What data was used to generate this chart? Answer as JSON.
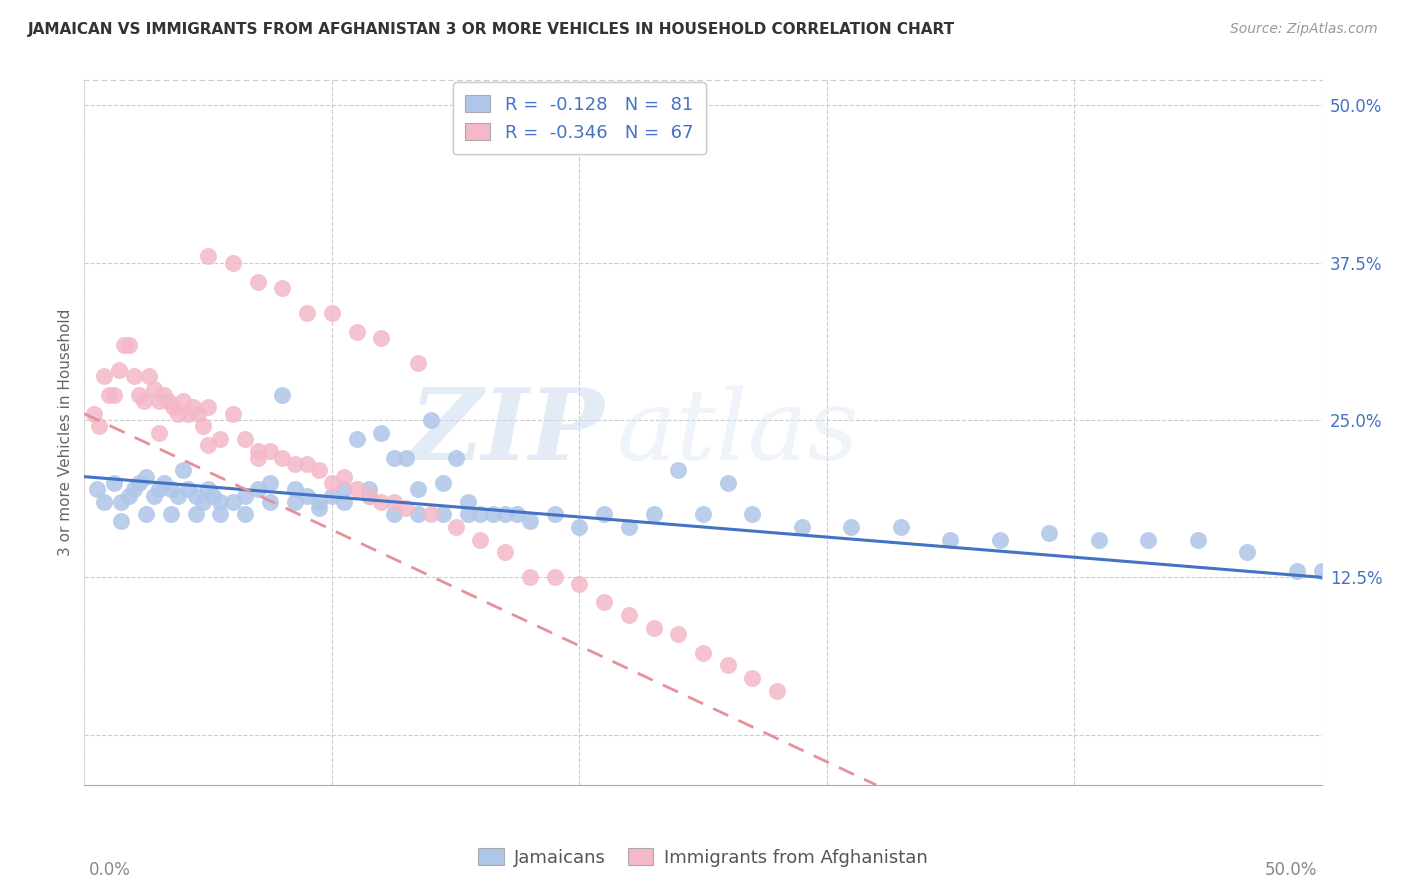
{
  "title": "JAMAICAN VS IMMIGRANTS FROM AFGHANISTAN 3 OR MORE VEHICLES IN HOUSEHOLD CORRELATION CHART",
  "source": "Source: ZipAtlas.com",
  "ylabel": "3 or more Vehicles in Household",
  "legend_label_1": "R =  -0.128   N =  81",
  "legend_label_2": "R =  -0.346   N =  67",
  "legend_bottom_1": "Jamaicans",
  "legend_bottom_2": "Immigrants from Afghanistan",
  "color_blue": "#aec6e8",
  "color_pink": "#f4b8c8",
  "color_blue_line": "#4472c4",
  "color_pink_line": "#e8909a",
  "color_text_blue": "#4472c4",
  "color_grid": "#cccccc",
  "watermark_zip": "ZIP",
  "watermark_atlas": "atlas",
  "xlim": [
    0.0,
    0.5
  ],
  "ylim": [
    -0.04,
    0.52
  ],
  "x_tick_positions": [
    0.0,
    0.1,
    0.2,
    0.3,
    0.4,
    0.5
  ],
  "y_tick_positions": [
    0.0,
    0.125,
    0.25,
    0.375,
    0.5
  ],
  "y_tick_labels": [
    "",
    "12.5%",
    "25.0%",
    "37.5%",
    "50.0%"
  ],
  "blue_line_x": [
    0.0,
    0.5
  ],
  "blue_line_y": [
    0.205,
    0.125
  ],
  "pink_line_x": [
    0.0,
    0.32
  ],
  "pink_line_y": [
    0.255,
    -0.04
  ],
  "jam_x": [
    0.005,
    0.008,
    0.012,
    0.015,
    0.018,
    0.02,
    0.022,
    0.025,
    0.028,
    0.03,
    0.032,
    0.035,
    0.038,
    0.04,
    0.042,
    0.045,
    0.048,
    0.05,
    0.052,
    0.055,
    0.06,
    0.065,
    0.07,
    0.075,
    0.08,
    0.085,
    0.09,
    0.095,
    0.1,
    0.105,
    0.11,
    0.115,
    0.12,
    0.125,
    0.13,
    0.135,
    0.14,
    0.145,
    0.15,
    0.155,
    0.16,
    0.165,
    0.17,
    0.175,
    0.18,
    0.19,
    0.2,
    0.21,
    0.22,
    0.23,
    0.25,
    0.27,
    0.29,
    0.31,
    0.33,
    0.35,
    0.37,
    0.39,
    0.41,
    0.43,
    0.45,
    0.47,
    0.49,
    0.015,
    0.025,
    0.035,
    0.045,
    0.055,
    0.065,
    0.075,
    0.085,
    0.095,
    0.105,
    0.115,
    0.125,
    0.135,
    0.145,
    0.155,
    0.24,
    0.26,
    0.5
  ],
  "jam_y": [
    0.195,
    0.185,
    0.2,
    0.185,
    0.19,
    0.195,
    0.2,
    0.205,
    0.19,
    0.195,
    0.2,
    0.195,
    0.19,
    0.21,
    0.195,
    0.19,
    0.185,
    0.195,
    0.19,
    0.185,
    0.185,
    0.19,
    0.195,
    0.2,
    0.27,
    0.195,
    0.19,
    0.185,
    0.19,
    0.195,
    0.235,
    0.195,
    0.24,
    0.22,
    0.22,
    0.195,
    0.25,
    0.2,
    0.22,
    0.185,
    0.175,
    0.175,
    0.175,
    0.175,
    0.17,
    0.175,
    0.165,
    0.175,
    0.165,
    0.175,
    0.175,
    0.175,
    0.165,
    0.165,
    0.165,
    0.155,
    0.155,
    0.16,
    0.155,
    0.155,
    0.155,
    0.145,
    0.13,
    0.17,
    0.175,
    0.175,
    0.175,
    0.175,
    0.175,
    0.185,
    0.185,
    0.18,
    0.185,
    0.19,
    0.175,
    0.175,
    0.175,
    0.175,
    0.21,
    0.2,
    0.13
  ],
  "afg_x": [
    0.004,
    0.006,
    0.008,
    0.01,
    0.012,
    0.014,
    0.016,
    0.018,
    0.02,
    0.022,
    0.024,
    0.026,
    0.028,
    0.03,
    0.032,
    0.034,
    0.036,
    0.038,
    0.04,
    0.042,
    0.044,
    0.046,
    0.048,
    0.05,
    0.055,
    0.06,
    0.065,
    0.07,
    0.075,
    0.08,
    0.085,
    0.09,
    0.095,
    0.1,
    0.105,
    0.11,
    0.115,
    0.12,
    0.125,
    0.13,
    0.14,
    0.15,
    0.16,
    0.17,
    0.18,
    0.19,
    0.2,
    0.21,
    0.22,
    0.23,
    0.24,
    0.25,
    0.26,
    0.27,
    0.28,
    0.06,
    0.08,
    0.1,
    0.12,
    0.135,
    0.05,
    0.07,
    0.09,
    0.11,
    0.03,
    0.05,
    0.07
  ],
  "afg_y": [
    0.255,
    0.245,
    0.285,
    0.27,
    0.27,
    0.29,
    0.31,
    0.31,
    0.285,
    0.27,
    0.265,
    0.285,
    0.275,
    0.265,
    0.27,
    0.265,
    0.26,
    0.255,
    0.265,
    0.255,
    0.26,
    0.255,
    0.245,
    0.26,
    0.235,
    0.255,
    0.235,
    0.225,
    0.225,
    0.22,
    0.215,
    0.215,
    0.21,
    0.2,
    0.205,
    0.195,
    0.19,
    0.185,
    0.185,
    0.18,
    0.175,
    0.165,
    0.155,
    0.145,
    0.125,
    0.125,
    0.12,
    0.105,
    0.095,
    0.085,
    0.08,
    0.065,
    0.055,
    0.045,
    0.035,
    0.375,
    0.355,
    0.335,
    0.315,
    0.295,
    0.38,
    0.36,
    0.335,
    0.32,
    0.24,
    0.23,
    0.22
  ]
}
